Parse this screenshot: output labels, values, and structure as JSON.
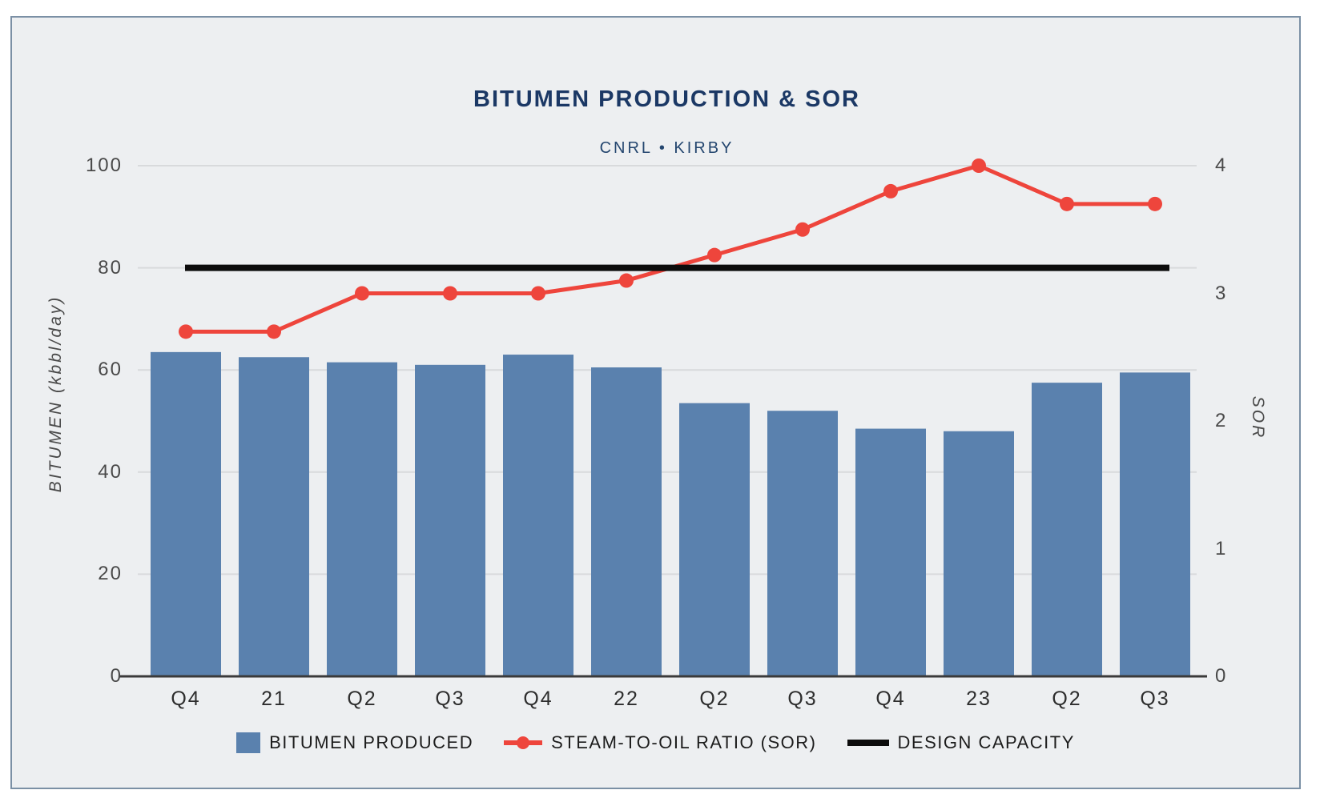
{
  "header": {
    "title": "BITUMEN PRODUCTION & SOR",
    "subtitle": "CNRL • KIRBY"
  },
  "chart_data": {
    "type": "combo-bar-line",
    "categories": [
      "Q4",
      "21",
      "Q2",
      "Q3",
      "Q4",
      "22",
      "Q2",
      "Q3",
      "Q4",
      "23",
      "Q2",
      "Q3"
    ],
    "series": [
      {
        "name": "BITUMEN PRODUCED",
        "type": "bar",
        "axis": "left",
        "color": "#5a81ae",
        "values": [
          63.5,
          62.5,
          61.5,
          61,
          63,
          60.5,
          53.5,
          52,
          48.5,
          48,
          57.5,
          59.5
        ]
      },
      {
        "name": "STEAM-TO-OIL RATIO (SOR)",
        "type": "line",
        "axis": "right",
        "color": "#ee453c",
        "values": [
          2.7,
          2.7,
          3.0,
          3.0,
          3.0,
          3.1,
          3.3,
          3.5,
          3.8,
          4.0,
          3.7,
          3.7
        ]
      },
      {
        "name": "DESIGN CAPACITY",
        "type": "hline",
        "axis": "left",
        "color": "#0c0c0c",
        "value": 80
      }
    ],
    "left_axis": {
      "label": "BITUMEN (kbbl/day)",
      "min": 0,
      "max": 100,
      "ticks": [
        0,
        20,
        40,
        60,
        80,
        100
      ]
    },
    "right_axis": {
      "label": "SOR",
      "min": 0,
      "max": 4,
      "ticks": [
        0,
        1,
        2,
        3,
        4
      ]
    },
    "grid": true,
    "legend_position": "bottom"
  },
  "colors": {
    "panel_bg": "#edeff1",
    "panel_border": "#7b90a5",
    "title": "#1b3865",
    "subtitle": "#24466f",
    "grid": "#d8dadc",
    "axis_line": "#3a3a3a",
    "tick_text": "#4a4a4a",
    "category_text": "#2d2d2d",
    "legend_text": "#1c1c1c"
  }
}
